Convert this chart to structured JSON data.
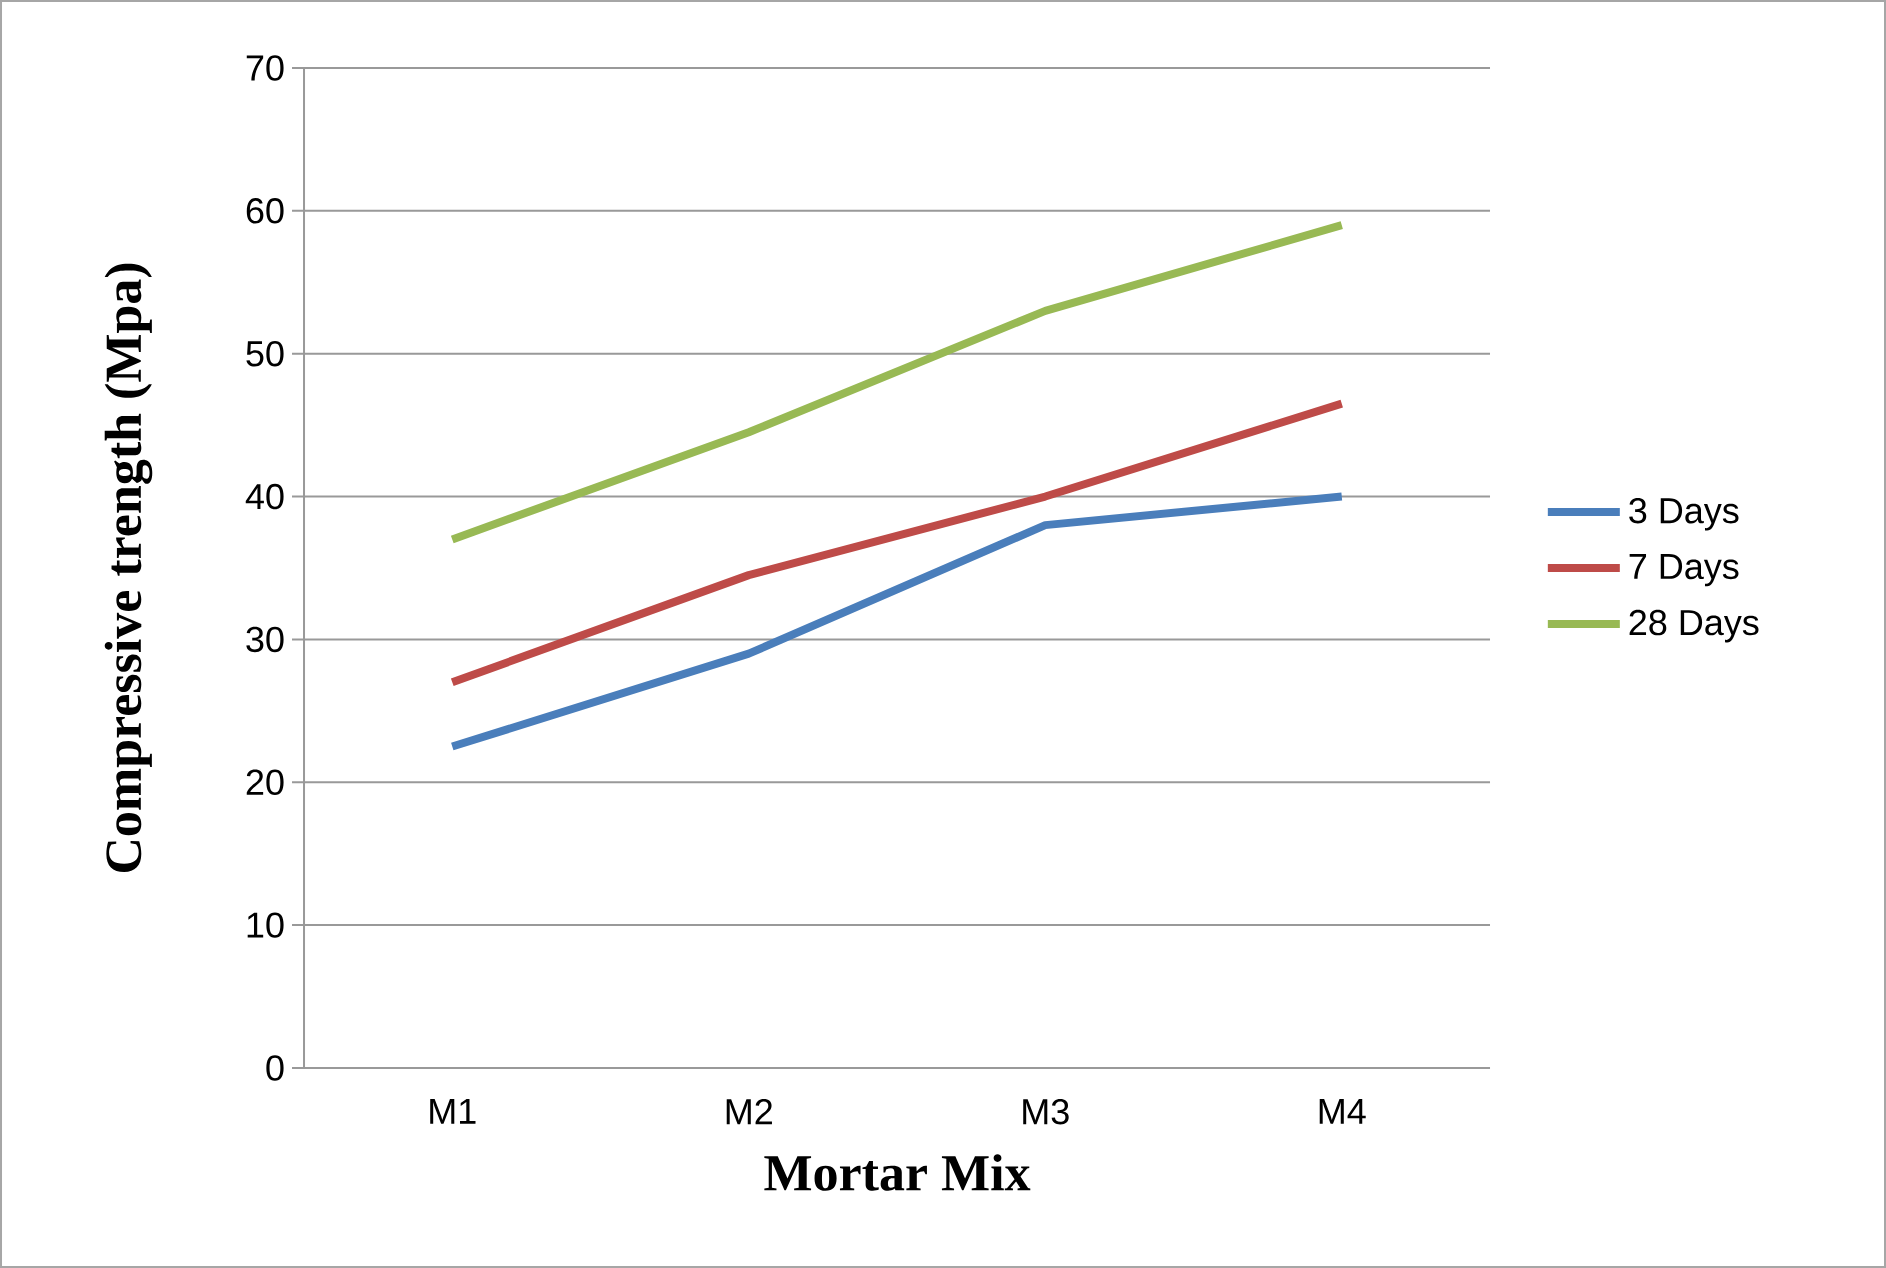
{
  "chart_data": {
    "type": "line",
    "xlabel": "Mortar Mix",
    "ylabel": "Compressive trength (Mpa)",
    "categories": [
      "M1",
      "M2",
      "M3",
      "M4"
    ],
    "series": [
      {
        "name": "3 Days",
        "color": "#4a7ebb",
        "values": [
          22.5,
          29,
          38,
          40
        ]
      },
      {
        "name": "7 Days",
        "color": "#be4b48",
        "values": [
          27,
          34.5,
          40,
          46.5
        ]
      },
      {
        "name": "28 Days",
        "color": "#98b954",
        "values": [
          37,
          44.5,
          53,
          59
        ]
      }
    ],
    "ylim": [
      0,
      70
    ],
    "yticks": [
      0,
      10,
      20,
      30,
      40,
      50,
      60,
      70
    ],
    "grid": "y",
    "legend": "right",
    "marker": "none",
    "line_style": "solid"
  }
}
